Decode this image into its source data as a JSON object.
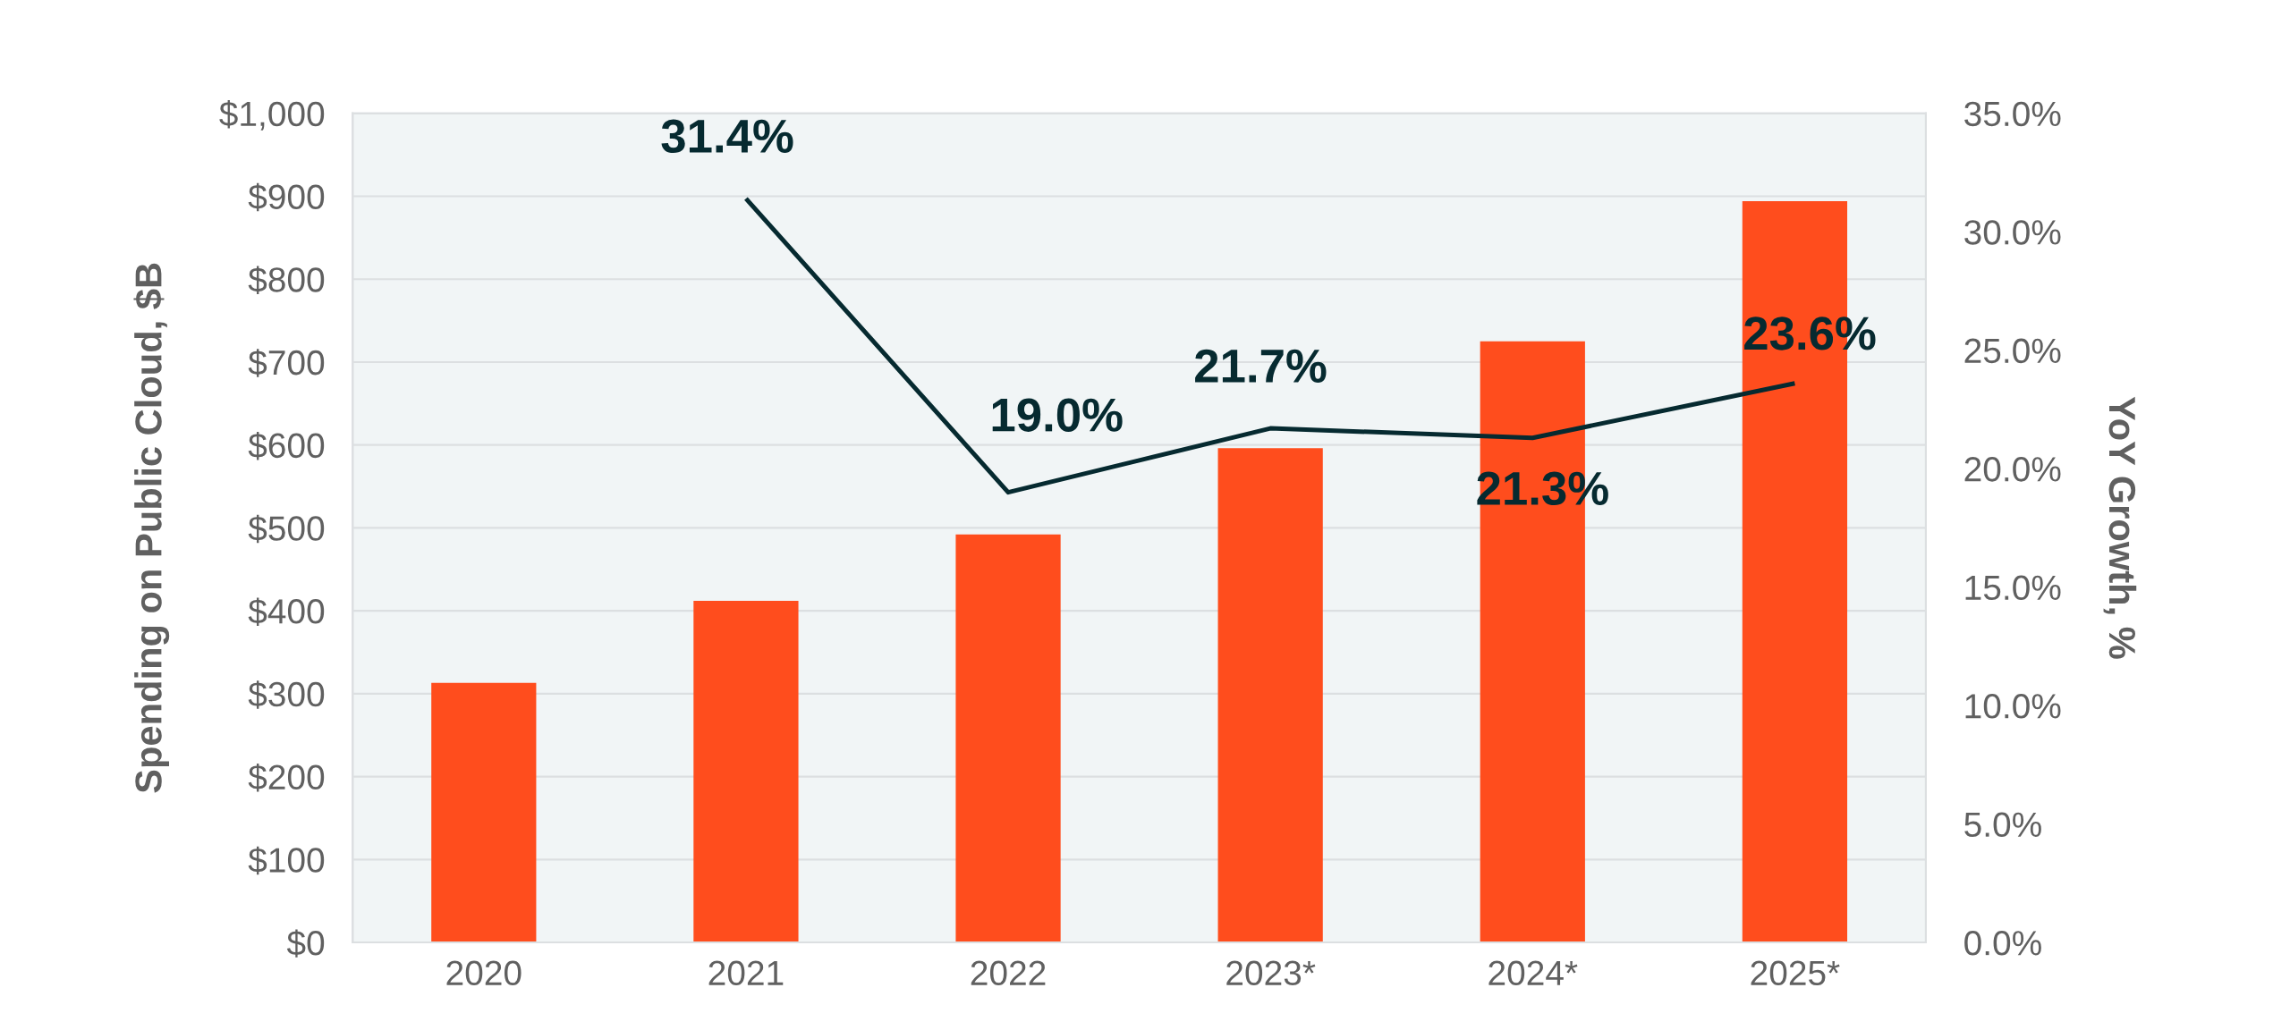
{
  "chart_data": {
    "type": "bar",
    "categories": [
      "2020",
      "2021",
      "2022",
      "2023*",
      "2024*",
      "2025*"
    ],
    "ylabel": "Spending on Public Cloud, $B",
    "y2label": "YoY Growth, %",
    "series": [
      {
        "color": "#ff4d1d",
        "values": [
          313,
          412,
          492,
          596,
          725,
          894
        ]
      },
      {
        "type": "line",
        "axis": "y2",
        "color": "#062a30",
        "values": [
          null,
          31.4,
          19.0,
          21.7,
          21.3,
          23.6
        ],
        "value_labels": [
          null,
          "31.4%",
          "19.0%",
          "21.7%",
          "21.3%",
          "23.6%"
        ]
      }
    ],
    "ylim": [
      0,
      1000
    ],
    "yticks": [
      {
        "value": 0,
        "label": "$0"
      },
      {
        "value": 100,
        "label": "$100"
      },
      {
        "value": 200,
        "label": "$200"
      },
      {
        "value": 300,
        "label": "$300"
      },
      {
        "value": 400,
        "label": "$400"
      },
      {
        "value": 500,
        "label": "$500"
      },
      {
        "value": 600,
        "label": "$600"
      },
      {
        "value": 700,
        "label": "$700"
      },
      {
        "value": 800,
        "label": "$800"
      },
      {
        "value": 900,
        "label": "$900"
      },
      {
        "value": 1000,
        "label": "$1,000"
      }
    ],
    "y2lim": [
      0,
      35
    ],
    "y2ticks": [
      {
        "value": 0,
        "label": "0.0%"
      },
      {
        "value": 5,
        "label": "5.0%"
      },
      {
        "value": 10,
        "label": "10.0%"
      },
      {
        "value": 15,
        "label": "15.0%"
      },
      {
        "value": 20,
        "label": "20.0%"
      },
      {
        "value": 25,
        "label": "25.0%"
      },
      {
        "value": 30,
        "label": "30.0%"
      },
      {
        "value": 35,
        "label": "35.0%"
      }
    ],
    "grid": "y"
  }
}
